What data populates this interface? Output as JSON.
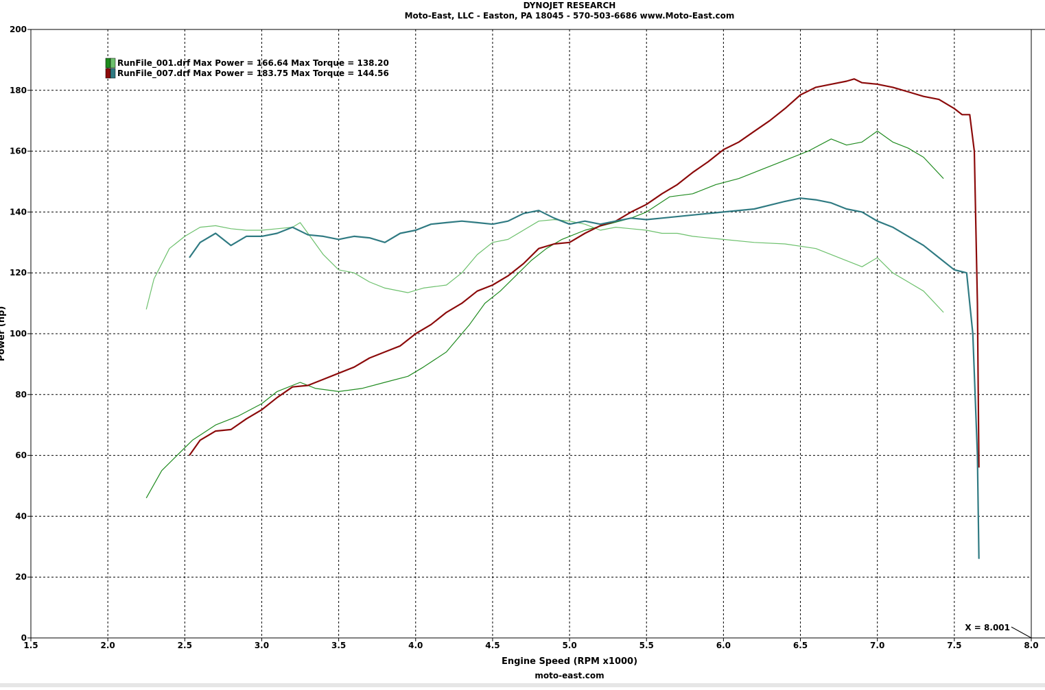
{
  "chart_data": {
    "type": "line",
    "title": "DYNOJET RESEARCH",
    "subtitle": "Moto-East, LLC - Easton, PA 18045 - 570-503-6686 www.Moto-East.com",
    "x_label": "Engine Speed (RPM x1000)",
    "y_label": "Power (hp)",
    "footer": "moto-east.com",
    "annotation": "X = 8.001",
    "xlim": [
      1.5,
      8.0
    ],
    "ylim": [
      0,
      200
    ],
    "xticks": [
      1.5,
      {
        "value": 2,
        "label": "2.0"
      },
      2.5,
      {
        "value": 3,
        "label": "3.0"
      },
      3.5,
      {
        "value": 4,
        "label": "4.0"
      },
      4.5,
      {
        "value": 5,
        "label": "5.0"
      },
      5.5,
      {
        "value": 6,
        "label": "6.0"
      },
      6.5,
      {
        "value": 7,
        "label": "7.0"
      },
      7.5,
      {
        "value": 8,
        "label": "8.0"
      }
    ],
    "yticks": [
      0,
      20,
      40,
      60,
      80,
      100,
      120,
      140,
      160,
      180,
      200
    ],
    "grid": true,
    "runs": [
      {
        "name": "RunFile_001.drf",
        "power_label": "Max Power = 166.64",
        "torque_label": "Max Torque = 138.20",
        "series": [
          {
            "color": "#1e8a1e",
            "width": 1.2,
            "x": [
              2.25,
              2.35,
              2.45,
              2.55,
              2.7,
              2.85,
              3.0,
              3.1,
              3.25,
              3.35,
              3.5,
              3.65,
              3.8,
              3.95,
              4.05,
              4.2,
              4.35,
              4.45,
              4.55,
              4.65,
              4.75,
              4.85,
              4.95,
              5.1,
              5.25,
              5.4,
              5.5,
              5.65,
              5.8,
              5.95,
              6.1,
              6.25,
              6.4,
              6.55,
              6.7,
              6.8,
              6.9,
              7.0,
              7.1,
              7.2,
              7.3,
              7.43
            ],
            "values": [
              46,
              55,
              60,
              65,
              70,
              73,
              77,
              81,
              84,
              82,
              81,
              82,
              84,
              86,
              89,
              94,
              103,
              110,
              114,
              119,
              124,
              128,
              131,
              134,
              136,
              138,
              140,
              145,
              146,
              149,
              151,
              154,
              157,
              160,
              164,
              162,
              163,
              166.6,
              163,
              161,
              158,
              151
            ]
          },
          {
            "color": "#6cc06c",
            "width": 1.2,
            "x": [
              2.25,
              2.3,
              2.4,
              2.5,
              2.6,
              2.7,
              2.8,
              2.9,
              3.0,
              3.1,
              3.2,
              3.25,
              3.3,
              3.4,
              3.5,
              3.6,
              3.7,
              3.8,
              3.95,
              4.05,
              4.2,
              4.3,
              4.4,
              4.5,
              4.6,
              4.7,
              4.8,
              4.9,
              5.0,
              5.1,
              5.2,
              5.3,
              5.4,
              5.5,
              5.6,
              5.7,
              5.8,
              6.0,
              6.2,
              6.4,
              6.6,
              6.8,
              6.9,
              7.0,
              7.1,
              7.2,
              7.3,
              7.43
            ],
            "values": [
              108,
              118,
              128,
              132,
              135,
              135.5,
              134.5,
              134,
              134,
              134.5,
              135,
              136.5,
              133,
              126,
              121,
              120,
              117,
              115,
              113.5,
              115,
              116,
              120,
              126,
              130,
              131,
              134,
              137,
              137.5,
              137,
              136,
              134,
              135,
              134.5,
              134,
              133,
              133,
              132,
              131,
              130,
              129.5,
              128,
              124,
              122,
              125,
              120,
              117,
              114,
              107
            ]
          }
        ]
      },
      {
        "name": "RunFile_007.drf",
        "power_label": "Max Power = 183.75",
        "torque_label": "Max Torque = 144.56",
        "series": [
          {
            "color": "#8b0a0a",
            "width": 2.2,
            "x": [
              2.53,
              2.6,
              2.7,
              2.8,
              2.9,
              3.0,
              3.1,
              3.2,
              3.3,
              3.4,
              3.5,
              3.6,
              3.7,
              3.8,
              3.9,
              4.0,
              4.1,
              4.2,
              4.3,
              4.4,
              4.5,
              4.6,
              4.7,
              4.8,
              4.9,
              5.0,
              5.1,
              5.2,
              5.3,
              5.4,
              5.5,
              5.6,
              5.7,
              5.8,
              5.9,
              6.0,
              6.1,
              6.2,
              6.3,
              6.4,
              6.5,
              6.6,
              6.7,
              6.8,
              6.85,
              6.9,
              7.0,
              7.1,
              7.2,
              7.3,
              7.4,
              7.5,
              7.55,
              7.6,
              7.63,
              7.65,
              7.66
            ],
            "values": [
              60,
              65,
              68,
              68.5,
              72,
              75,
              79,
              82.5,
              83,
              85,
              87,
              89,
              92,
              94,
              96,
              100,
              103,
              107,
              110,
              114,
              116,
              119,
              123,
              128,
              129.5,
              130,
              133,
              135.5,
              137,
              140,
              142.5,
              146,
              149,
              153,
              156.5,
              160.5,
              163,
              166.5,
              170,
              174,
              178.5,
              181,
              182,
              183,
              183.75,
              182.5,
              182,
              181,
              179.5,
              178,
              177,
              174,
              172,
              172,
              160,
              110,
              56
            ]
          },
          {
            "color": "#2f7a82",
            "width": 2.2,
            "x": [
              2.53,
              2.6,
              2.7,
              2.8,
              2.9,
              3.0,
              3.1,
              3.2,
              3.3,
              3.4,
              3.5,
              3.6,
              3.7,
              3.8,
              3.9,
              4.0,
              4.1,
              4.2,
              4.3,
              4.4,
              4.5,
              4.6,
              4.7,
              4.8,
              4.9,
              5.0,
              5.1,
              5.2,
              5.3,
              5.4,
              5.5,
              5.6,
              5.8,
              6.0,
              6.2,
              6.4,
              6.5,
              6.6,
              6.7,
              6.8,
              6.9,
              7.0,
              7.1,
              7.2,
              7.3,
              7.4,
              7.5,
              7.58,
              7.62,
              7.65,
              7.66
            ],
            "values": [
              125,
              130,
              133,
              129,
              132,
              132,
              133,
              135,
              132.5,
              132,
              131,
              132,
              131.5,
              130,
              133,
              134,
              136,
              136.5,
              137,
              136.5,
              136,
              137,
              139.5,
              140.5,
              138,
              136,
              137,
              136,
              137,
              138,
              137.5,
              138,
              139,
              140,
              141,
              143.5,
              144.56,
              144,
              143,
              141,
              140,
              137,
              135,
              132,
              129,
              125,
              121,
              120,
              100,
              60,
              26
            ]
          }
        ]
      }
    ]
  }
}
